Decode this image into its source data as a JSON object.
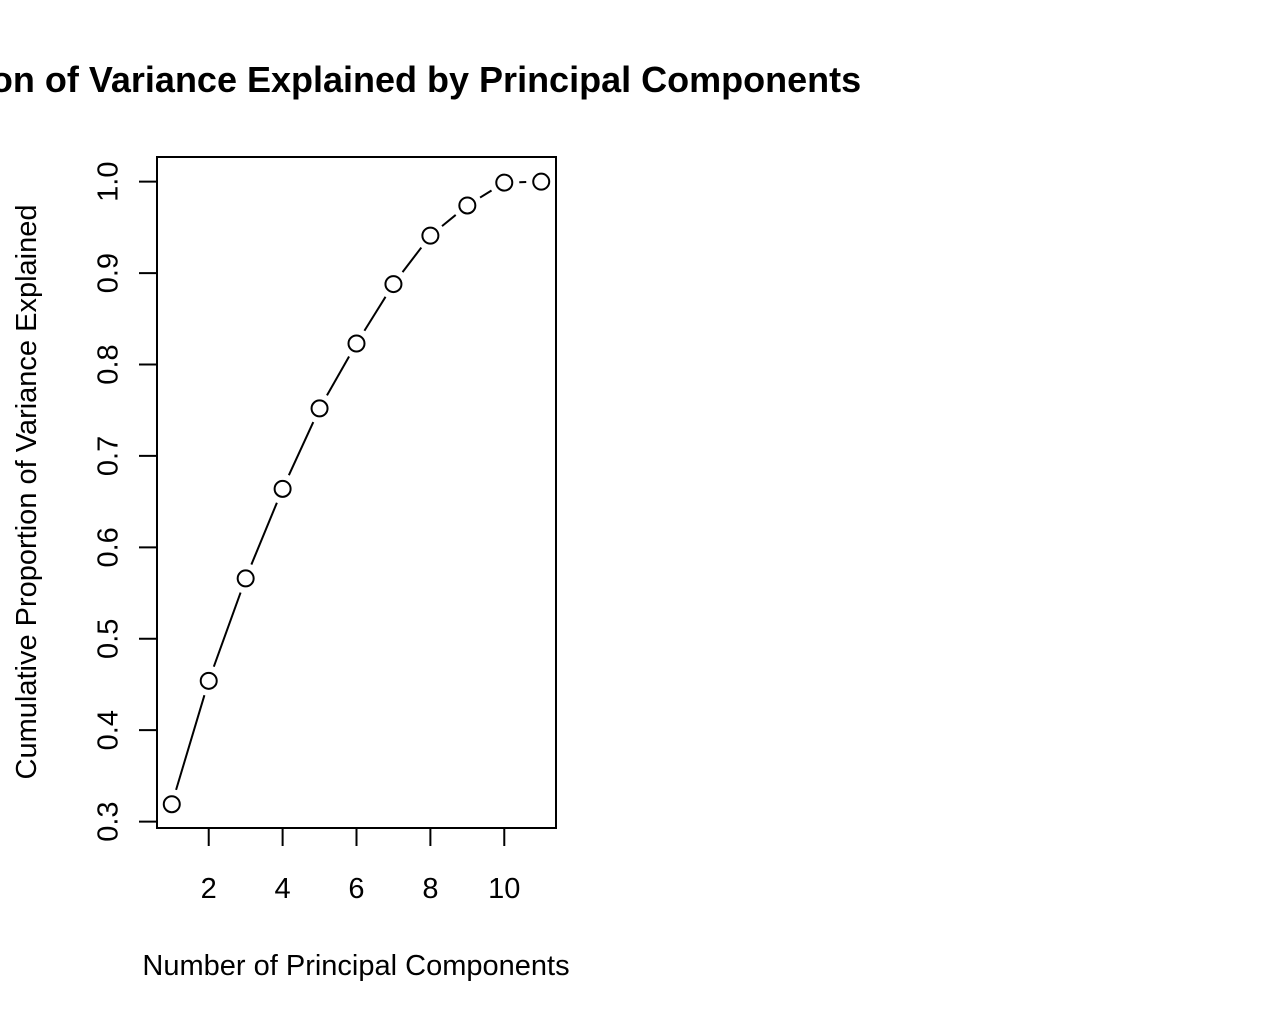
{
  "chart_data": {
    "type": "line",
    "markers": "open-circle",
    "title": "Proportion of Variance Explained by Principal Components",
    "xlabel": "Number of Principal Components",
    "ylabel": "Cumulative Proportion of Variance Explained",
    "x": [
      1,
      2,
      3,
      4,
      5,
      6,
      7,
      8,
      9,
      10,
      11
    ],
    "y": [
      0.319,
      0.454,
      0.566,
      0.664,
      0.752,
      0.823,
      0.888,
      0.941,
      0.974,
      0.999,
      1.0
    ],
    "xlim": [
      0.6,
      11.4
    ],
    "ylim": [
      0.293,
      1.027
    ],
    "xticks": [
      2,
      4,
      6,
      8,
      10
    ],
    "yticks": [
      0.3,
      0.4,
      0.5,
      0.6,
      0.7,
      0.8,
      0.9,
      1.0
    ],
    "xtick_labels": [
      "2",
      "4",
      "6",
      "8",
      "10"
    ],
    "ytick_labels": [
      "0.3",
      "0.4",
      "0.5",
      "0.6",
      "0.7",
      "0.8",
      "0.9",
      "1.0"
    ],
    "grid": false,
    "legend": "none",
    "colors": {
      "line": "#000000",
      "marker_fill": "#ffffff",
      "text": "#000000"
    }
  }
}
